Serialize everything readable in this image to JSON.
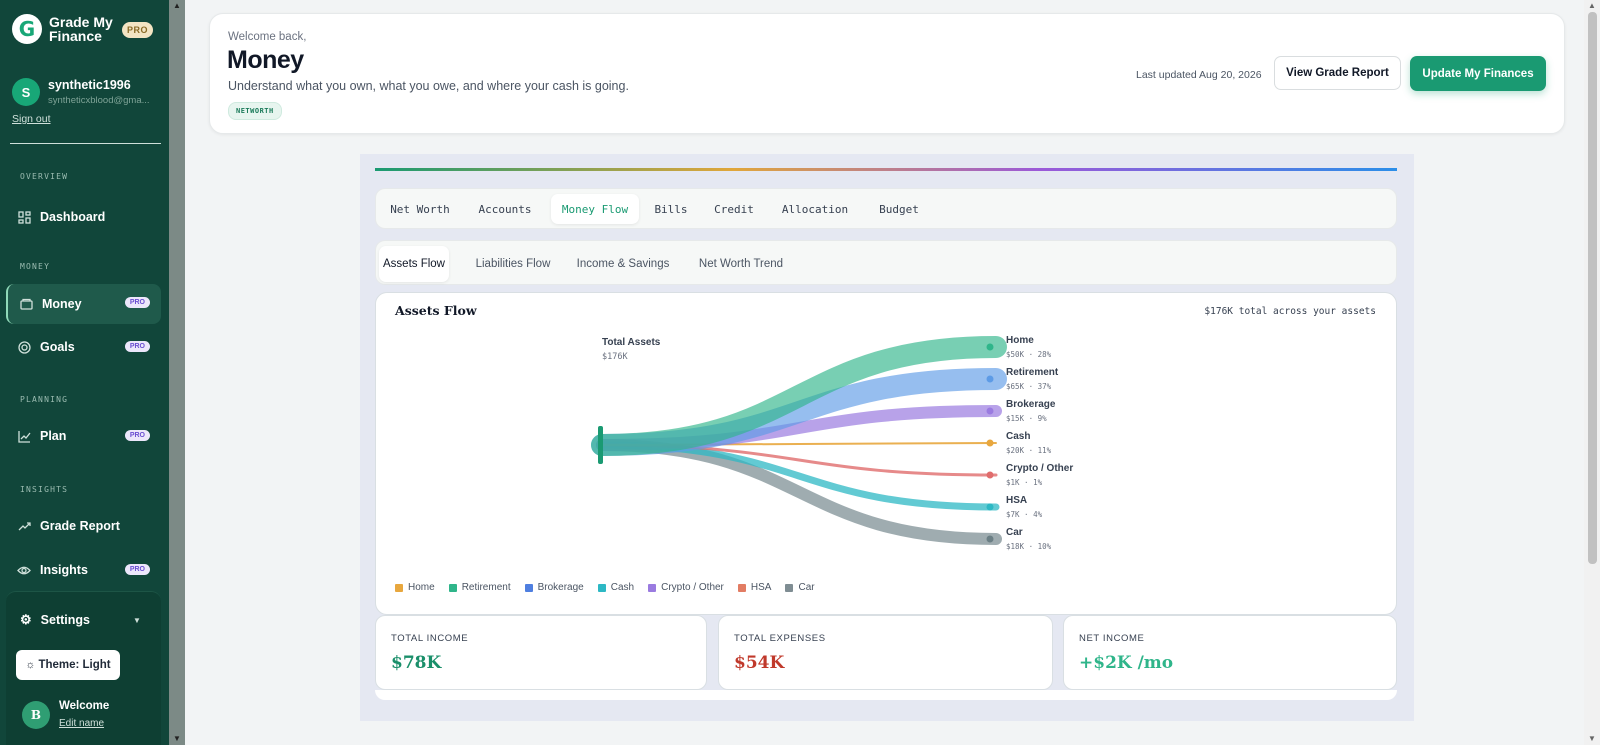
{
  "app": {
    "brand_line1": "Grade My",
    "brand_line2": "Finance",
    "brand_badge": "PRO",
    "logo_letter": "G"
  },
  "user": {
    "initial": "S",
    "name": "synthetic1996",
    "email": "syntheticxblood@gma...",
    "sign_out": "Sign out"
  },
  "sidebar": {
    "sections": {
      "overview": "OVERVIEW",
      "money": "MONEY",
      "planning": "PLANNING",
      "insights": "INSIGHTS"
    },
    "items": {
      "dashboard": {
        "label": "Dashboard",
        "icon": "grid-icon"
      },
      "money": {
        "label": "Money",
        "icon": "wallet-icon",
        "badge": "PRO"
      },
      "goals": {
        "label": "Goals",
        "icon": "target-icon",
        "badge": "PRO"
      },
      "plan": {
        "label": "Plan",
        "icon": "chart-line-icon",
        "badge": "PRO"
      },
      "grade_report": {
        "label": "Grade Report",
        "icon": "trend-up-icon"
      },
      "insights": {
        "label": "Insights",
        "icon": "eye-icon",
        "badge": "PRO"
      }
    },
    "settings": {
      "label": "Settings",
      "theme": "Theme: Light"
    },
    "welcome": {
      "initial": "B",
      "name": "Welcome",
      "edit": "Edit name"
    }
  },
  "header": {
    "welcome": "Welcome back,",
    "title": "Money",
    "subtitle": "Understand what you own, what you owe, and where your cash is going.",
    "tag": "NETWORTH",
    "last_updated": "Last updated Aug 20, 2026",
    "view_report": "View Grade Report",
    "update": "Update My Finances"
  },
  "tabs": [
    "Net Worth",
    "Accounts",
    "Money Flow",
    "Bills",
    "Credit",
    "Allocation",
    "Budget"
  ],
  "active_tab": "Money Flow",
  "subtabs": [
    "Assets Flow",
    "Liabilities Flow",
    "Income & Savings",
    "Net Worth Trend"
  ],
  "active_subtab": "Assets Flow",
  "chart": {
    "title": "Assets Flow",
    "total_note": "$176K total across your assets"
  },
  "chart_data": {
    "type": "sankey",
    "source": {
      "name": "Total Assets",
      "value_label": "$176K"
    },
    "targets": [
      {
        "name": "Home",
        "value_label": "$50K",
        "pct": "28%",
        "color": "#2fb58a"
      },
      {
        "name": "Retirement",
        "value_label": "$65K",
        "pct": "37%",
        "color": "#5d9be6"
      },
      {
        "name": "Brokerage",
        "value_label": "$15K",
        "pct": "9%",
        "color": "#9a7be0"
      },
      {
        "name": "Cash",
        "value_label": "$20K",
        "pct": "11%",
        "color": "#e8a73e"
      },
      {
        "name": "Crypto / Other",
        "value_label": "$1K",
        "pct": "1%",
        "color": "#e06d6d"
      },
      {
        "name": "HSA",
        "value_label": "$7K",
        "pct": "4%",
        "color": "#2db8c4"
      },
      {
        "name": "Car",
        "value_label": "$18K",
        "pct": "10%",
        "color": "#6b7f85"
      }
    ],
    "legend": [
      {
        "name": "Home",
        "color": "#e8a73e"
      },
      {
        "name": "Retirement",
        "color": "#2fb58a"
      },
      {
        "name": "Brokerage",
        "color": "#4f7fe0"
      },
      {
        "name": "Cash",
        "color": "#2db8c4"
      },
      {
        "name": "Crypto / Other",
        "color": "#9a7be0"
      },
      {
        "name": "HSA",
        "color": "#e27c63"
      },
      {
        "name": "Car",
        "color": "#7f8d93"
      }
    ]
  },
  "stats": [
    {
      "label": "TOTAL INCOME",
      "value": "$78K",
      "color": "#1a8f6a"
    },
    {
      "label": "TOTAL EXPENSES",
      "value": "$54K",
      "color": "#c0392b"
    },
    {
      "label": "NET INCOME",
      "value": "+$2K /mo",
      "color": "#2fb58a"
    }
  ]
}
